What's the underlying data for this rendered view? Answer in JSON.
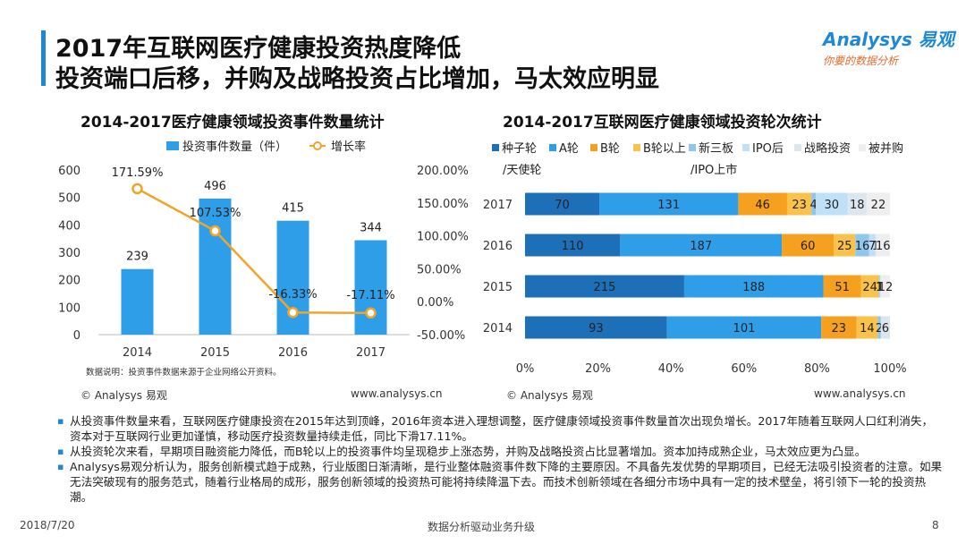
{
  "header": {
    "title_line1": "2017年互联网医疗健康投资热度降低",
    "title_line2": "投资端口后移，并购及战略投资占比增加，马太效应明显"
  },
  "logo": {
    "brand": "Analysys 易观",
    "slogan": "你要的数据分析"
  },
  "colors": {
    "accent": "#1e88d6",
    "orange": "#f5a623",
    "line": "#f0a52a"
  },
  "chart_data": [
    {
      "type": "bar",
      "title": "2014-2017医疗健康领域投资事件数量统计",
      "categories": [
        "2014",
        "2015",
        "2016",
        "2017"
      ],
      "series": [
        {
          "name": "投资事件数量（件）",
          "values": [
            239,
            496,
            415,
            344
          ]
        },
        {
          "name": "增长率",
          "type": "line",
          "values": [
            171.59,
            107.53,
            -16.33,
            -17.11
          ],
          "labels": [
            "171.59%",
            "107.53%",
            "-16.33%",
            "-17.11%"
          ]
        }
      ],
      "ylim": [
        0,
        600
      ],
      "yticks": [
        "0",
        "100",
        "200",
        "300",
        "400",
        "500",
        "600"
      ],
      "y2lim": [
        -50,
        200
      ],
      "y2ticks": [
        "-50.00%",
        "0.00%",
        "50.00%",
        "100.00%",
        "150.00%",
        "200.00%"
      ],
      "note": "数据说明：投资事件数据来源于企业网络公开资料。",
      "source": "© Analysys 易观",
      "url": "www.analysys.cn"
    },
    {
      "type": "bar",
      "orientation": "horizontal",
      "stacked": "percent",
      "title": "2014-2017互联网医疗健康领域投资轮次统计",
      "categories": [
        "2017",
        "2016",
        "2015",
        "2014"
      ],
      "series": [
        {
          "name": "种子轮/天使轮",
          "color": "#1d6fb8",
          "values": [
            70,
            110,
            215,
            93
          ]
        },
        {
          "name": "A轮",
          "color": "#2f9ee8",
          "values": [
            131,
            187,
            188,
            101
          ]
        },
        {
          "name": "B轮",
          "color": "#f5a01e",
          "values": [
            46,
            60,
            51,
            23
          ]
        },
        {
          "name": "B轮以上",
          "color": "#fbc24a",
          "values": [
            23,
            25,
            24,
            14
          ]
        },
        {
          "name": "新三板",
          "color": "#8ec6ee",
          "values": [
            4,
            16,
            1,
            2
          ]
        },
        {
          "name": "IPO后/IPO上市",
          "color": "#bfe0f7",
          "values": [
            30,
            7,
            1,
            0
          ]
        },
        {
          "name": "战略投资",
          "color": "#dbe6ef",
          "values": [
            18,
            1,
            1,
            6
          ]
        },
        {
          "name": "被并购",
          "color": "#eeeeee",
          "values": [
            22,
            16,
            12,
            0
          ]
        }
      ],
      "bar_labels": [
        [
          "70",
          "131",
          "46",
          "23",
          "4",
          "30",
          "18",
          "22"
        ],
        [
          "110",
          "187",
          "60",
          "25",
          "16",
          "7",
          "1",
          "16"
        ],
        [
          "215",
          "188",
          "51",
          "24",
          "1",
          "1",
          "1",
          "12"
        ],
        [
          "93",
          "101",
          "23",
          "14",
          "2",
          "",
          "6",
          ""
        ]
      ],
      "legend_row1": [
        "种子轮",
        "A轮",
        "B轮",
        "B轮以上",
        "新三板",
        "IPO后",
        "战略投资",
        "被并购"
      ],
      "legend_row2": [
        "/天使轮",
        "/IPO上市"
      ],
      "xticks": [
        "0%",
        "20%",
        "40%",
        "60%",
        "80%",
        "100%"
      ],
      "source": "© Analysys 易观",
      "url": "www.analysys.cn"
    }
  ],
  "bullets": [
    "从投资事件数量来看，互联网医疗健康投资在2015年达到顶峰，2016年资本进入理想调整，医疗健康领域投资事件数量首次出现负增长。2017年随着互联网人口红利消失，资本对于互联网行业更加谨慎，移动医疗投资数量持续走低，同比下滑17.11%。",
    "从投资轮次来看，早期项目融资能力降低，而B轮以上的投资事件均呈现稳步上涨态势，并购及战略投资占比显著增加。资本加持成熟企业，马太效应更为凸显。",
    "Analysys易观分析认为，服务创新模式趋于成熟，行业版图日渐清晰，是行业整体融资事件数下降的主要原因。不具备先发优势的早期项目，已经无法吸引投资者的注意。如果无法突破现有的服务范式，随着行业格局的成形，服务创新领域的投资热可能将持续降温下去。而技术创新领域在各细分市场中具有一定的技术壁垒，将引领下一轮的投资热潮。"
  ],
  "footer": {
    "date": "2018/7/20",
    "center": "数据分析驱动业务升级",
    "page": "8"
  }
}
